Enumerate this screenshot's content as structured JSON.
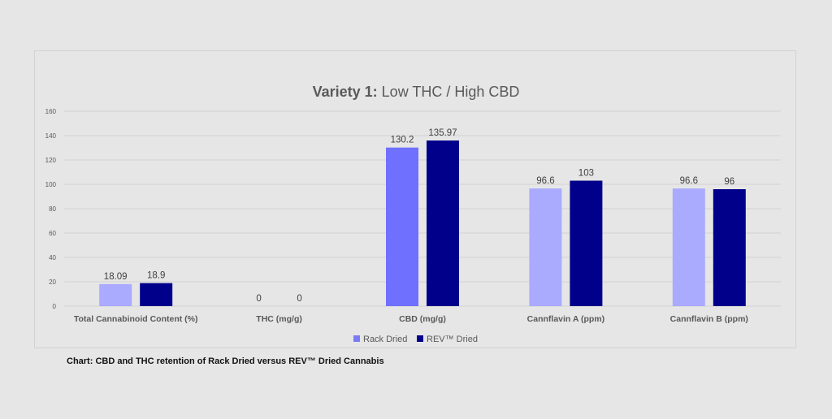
{
  "colors": {
    "rack_dried_legend": "#7b7bf7",
    "rev_dried": "#00008b",
    "rack_light": "#aaaaff",
    "rack_mid": "#7070ff",
    "grid": "#d3d3d3",
    "axis_text": "#595959"
  },
  "chart_data": {
    "type": "bar",
    "title_bold": "Variety 1:",
    "title_rest": " Low THC / High CBD",
    "xlabel": "",
    "ylabel": "",
    "ylim": [
      0,
      160
    ],
    "yticks": [
      0,
      20,
      40,
      60,
      80,
      100,
      120,
      140,
      160
    ],
    "grid": true,
    "legend_position": "bottom",
    "categories": [
      "Total Cannabinoid Content (%)",
      "THC (mg/g)",
      "CBD (mg/g)",
      "Cannflavin A (ppm)",
      "Cannflavin B (ppm)"
    ],
    "series": [
      {
        "name": "Rack Dried",
        "values": [
          18.09,
          0,
          130.2,
          96.6,
          96.6
        ],
        "labels": [
          "18.09",
          "0",
          "130.2",
          "96.6",
          "96.6"
        ],
        "bar_colors": [
          "#aaaaff",
          "#aaaaff",
          "#7070ff",
          "#aaaaff",
          "#aaaaff"
        ]
      },
      {
        "name": "REV™ Dried",
        "values": [
          18.9,
          0,
          135.97,
          103,
          96
        ],
        "labels": [
          "18.9",
          "0",
          "135.97",
          "103",
          "96"
        ],
        "bar_colors": [
          "#00008b",
          "#00008b",
          "#00008b",
          "#00008b",
          "#00008b"
        ]
      }
    ]
  },
  "caption": "Chart: CBD and THC retention of Rack Dried versus REV™ Dried Cannabis"
}
